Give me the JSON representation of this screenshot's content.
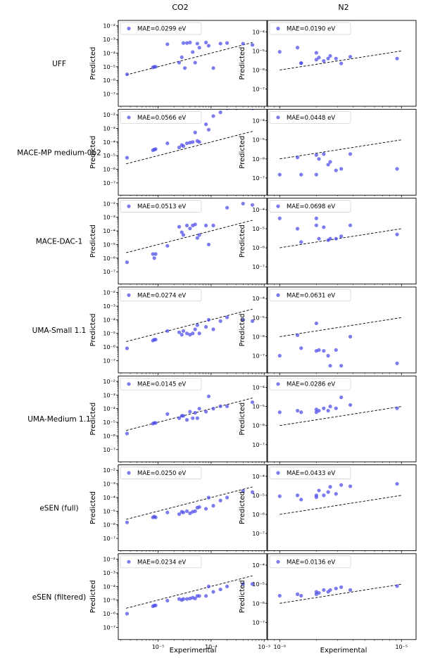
{
  "figure": {
    "columns": [
      "CO2",
      "N2"
    ],
    "rows": [
      "UFF",
      "MACE-MP medium-0b2",
      "MACE-DAC-1",
      "UMA-Small 1.1",
      "UMA-Medium 1.1",
      "eSEN (full)",
      "eSEN (filtered)"
    ],
    "ylabel": "Predicted",
    "xlabel": "Experimental",
    "point_color": "#4a4ae8",
    "reference_line": "y = x (dashed)"
  },
  "axes": {
    "CO2": {
      "x_ticks": [
        "10⁻⁵",
        "10⁻⁴",
        "10⁻³"
      ],
      "y_ticks": [
        "10⁻²",
        "10⁻³",
        "10⁻⁴",
        "10⁻⁵",
        "10⁻⁶",
        "10⁻⁷"
      ],
      "x_log_range": [
        -5.75,
        -2.95
      ],
      "y_log_range": [
        -7.9,
        -1.6
      ]
    },
    "N2": {
      "x_ticks": [
        "10⁻⁶",
        "10⁻⁵"
      ],
      "y_ticks": [
        "10⁻⁴",
        "10⁻⁵",
        "10⁻⁶",
        "10⁻⁷"
      ],
      "x_log_range": [
        -6.1,
        -4.88
      ],
      "y_log_range": [
        -7.9,
        -3.4
      ]
    }
  },
  "chart_data": [
    {
      "type": "scatter",
      "row": "UFF",
      "column": "CO2",
      "legend": "MAE=0.0299 eV",
      "xscale": "log",
      "yscale": "log",
      "x": [
        2.6e-06,
        8e-06,
        8.5e-06,
        9e-06,
        1.5e-05,
        2.5e-05,
        2.8e-05,
        3e-05,
        3.2e-05,
        3.5e-05,
        4e-05,
        4.5e-05,
        5e-05,
        5.5e-05,
        6e-05,
        8e-05,
        9e-05,
        0.00011,
        0.00015,
        0.0002,
        0.0004,
        0.0006
      ],
      "y": [
        2.8e-06,
        9e-06,
        1e-05,
        1e-05,
        0.00045,
        2e-05,
        5e-05,
        0.00055,
        8e-06,
        0.00055,
        0.0006,
        0.00012,
        2e-05,
        0.0005,
        0.00025,
        0.0006,
        0.00035,
        8e-06,
        0.0005,
        0.00055,
        0.0005,
        0.0004
      ]
    },
    {
      "type": "scatter",
      "row": "UFF",
      "column": "N2",
      "legend": "MAE=0.0190 eV",
      "xscale": "log",
      "yscale": "log",
      "x": [
        1e-06,
        1.4e-06,
        1.5e-06,
        1.5e-06,
        2e-06,
        2e-06,
        2.1e-06,
        2.3e-06,
        2.5e-06,
        2.6e-06,
        2.9e-06,
        3.2e-06,
        3.8e-06,
        9.2e-06
      ],
      "y": [
        9e-06,
        1.5e-05,
        2.3e-06,
        2.3e-06,
        3.5e-06,
        8e-06,
        4.5e-06,
        3e-06,
        4e-06,
        5.5e-06,
        4e-06,
        2.2e-06,
        5e-06,
        4e-06
      ]
    },
    {
      "type": "scatter",
      "row": "MACE-MP medium-0b2",
      "column": "CO2",
      "legend": "MAE=0.0566 eV",
      "xscale": "log",
      "yscale": "log",
      "x": [
        2.6e-06,
        8e-06,
        8.5e-06,
        9e-06,
        1.5e-05,
        2.5e-05,
        2.8e-05,
        3e-05,
        3.5e-05,
        4e-05,
        4.5e-05,
        5e-05,
        5.5e-05,
        6e-05,
        8e-05,
        9e-05,
        0.00011,
        0.00015,
        0.0002,
        0.0003,
        0.0006
      ],
      "y": [
        7e-06,
        2.5e-05,
        2.8e-05,
        3e-05,
        8e-05,
        4e-05,
        6e-05,
        5e-05,
        8e-05,
        9e-05,
        0.0001,
        0.0005,
        0.00012,
        0.0001,
        0.002,
        0.0008,
        0.008,
        0.015,
        0.03,
        0.03,
        0.03
      ]
    },
    {
      "type": "scatter",
      "row": "MACE-MP medium-0b2",
      "column": "N2",
      "legend": "MAE=0.0448 eV",
      "xscale": "log",
      "yscale": "log",
      "x": [
        1e-06,
        1.4e-06,
        1.5e-06,
        2e-06,
        2e-06,
        2.1e-06,
        2.3e-06,
        2.5e-06,
        2.6e-06,
        2.9e-06,
        3.2e-06,
        3.8e-06,
        9.2e-06
      ],
      "y": [
        1.5e-07,
        1.2e-06,
        1.5e-07,
        1.6e-06,
        1.5e-07,
        1e-06,
        1.8e-06,
        5e-07,
        7e-07,
        2.5e-07,
        3e-07,
        1.8e-06,
        3e-07
      ]
    },
    {
      "type": "scatter",
      "row": "MACE-DAC-1",
      "column": "CO2",
      "legend": "MAE=0.0513 eV",
      "xscale": "log",
      "yscale": "log",
      "x": [
        2.6e-06,
        8e-06,
        8.5e-06,
        9e-06,
        1.5e-05,
        2.5e-05,
        2.8e-05,
        3e-05,
        3.5e-05,
        4e-05,
        4.5e-05,
        5e-05,
        5.5e-05,
        6e-05,
        8e-05,
        9e-05,
        0.00011,
        0.0002,
        0.0004,
        0.0006
      ],
      "y": [
        5e-07,
        2e-06,
        1e-06,
        2e-06,
        8e-06,
        0.0002,
        8e-05,
        5e-05,
        0.00025,
        0.00015,
        0.00025,
        0.0003,
        3e-05,
        5e-05,
        0.00025,
        1e-05,
        0.00025,
        0.005,
        0.01,
        0.008
      ]
    },
    {
      "type": "scatter",
      "row": "MACE-DAC-1",
      "column": "N2",
      "legend": "MAE=0.0698 eV",
      "xscale": "log",
      "yscale": "log",
      "x": [
        1e-06,
        1.4e-06,
        1.5e-06,
        2e-06,
        2e-06,
        2.1e-06,
        2.3e-06,
        2.5e-06,
        2.6e-06,
        2.9e-06,
        3.2e-06,
        3.8e-06,
        9.2e-06
      ],
      "y": [
        3.5e-05,
        1e-05,
        2e-06,
        3.5e-05,
        1.5e-05,
        3e-06,
        1.2e-05,
        2.5e-06,
        3e-06,
        3e-06,
        4e-06,
        1.5e-05,
        5e-06
      ]
    },
    {
      "type": "scatter",
      "row": "UMA-Small 1.1",
      "column": "CO2",
      "legend": "MAE=0.0274 eV",
      "xscale": "log",
      "yscale": "log",
      "x": [
        2.6e-06,
        8e-06,
        8.5e-06,
        9e-06,
        1.5e-05,
        2.5e-05,
        2.8e-05,
        3e-05,
        3.5e-05,
        4e-05,
        4.5e-05,
        5e-05,
        5.5e-05,
        6e-05,
        8e-05,
        9e-05,
        0.00011,
        0.00015,
        0.0002,
        0.0004,
        0.0006
      ],
      "y": [
        8e-07,
        3e-06,
        3.5e-06,
        3.5e-06,
        1.5e-05,
        1.2e-05,
        8e-06,
        1.5e-05,
        1e-05,
        8e-06,
        1e-05,
        2e-05,
        4e-05,
        1e-05,
        3e-05,
        0.0001,
        2e-05,
        8e-05,
        0.00015,
        0.0001,
        8e-05
      ]
    },
    {
      "type": "scatter",
      "row": "UMA-Small 1.1",
      "column": "N2",
      "legend": "MAE=0.0631 eV",
      "xscale": "log",
      "yscale": "log",
      "x": [
        1e-06,
        1.4e-06,
        1.5e-06,
        2e-06,
        2e-06,
        2.1e-06,
        2.3e-06,
        2.5e-06,
        2.6e-06,
        2.9e-06,
        3.2e-06,
        3.8e-06,
        9.2e-06
      ],
      "y": [
        1e-07,
        1.2e-06,
        2.5e-07,
        5e-06,
        1.8e-07,
        2e-07,
        1.8e-07,
        1e-07,
        3e-08,
        2e-07,
        3e-08,
        1e-06,
        4e-08
      ]
    },
    {
      "type": "scatter",
      "row": "UMA-Medium 1.1",
      "column": "CO2",
      "legend": "MAE=0.0145 eV",
      "xscale": "log",
      "yscale": "log",
      "x": [
        2.6e-06,
        8e-06,
        8.5e-06,
        9e-06,
        1.5e-05,
        2.5e-05,
        2.8e-05,
        3e-05,
        3.5e-05,
        4e-05,
        4.5e-05,
        5e-05,
        5.5e-05,
        6e-05,
        8e-05,
        9e-05,
        0.00011,
        0.00015,
        0.0002,
        0.0006
      ],
      "y": [
        1.5e-06,
        8e-06,
        9e-06,
        9e-06,
        4e-05,
        2e-05,
        3e-05,
        3e-05,
        1.5e-05,
        6e-05,
        2e-05,
        5e-05,
        2e-05,
        0.0001,
        6e-05,
        0.0008,
        0.0001,
        0.00015,
        0.00015,
        0.0003
      ]
    },
    {
      "type": "scatter",
      "row": "UMA-Medium 1.1",
      "column": "N2",
      "legend": "MAE=0.0286 eV",
      "xscale": "log",
      "yscale": "log",
      "x": [
        1e-06,
        1.4e-06,
        1.5e-06,
        2e-06,
        2e-06,
        2.1e-06,
        2.3e-06,
        2.5e-06,
        2.6e-06,
        2.9e-06,
        3.2e-06,
        3.8e-06,
        9.2e-06
      ],
      "y": [
        5e-06,
        6e-06,
        5e-06,
        7e-06,
        5e-06,
        6e-06,
        8e-06,
        6e-06,
        1e-05,
        8e-06,
        3e-05,
        1.2e-05,
        8e-06
      ]
    },
    {
      "type": "scatter",
      "row": "eSEN (full)",
      "column": "CO2",
      "legend": "MAE=0.0250 eV",
      "xscale": "log",
      "yscale": "log",
      "x": [
        2.6e-06,
        8e-06,
        8.5e-06,
        9e-06,
        1.5e-05,
        2.5e-05,
        2.8e-05,
        3e-05,
        3.5e-05,
        4e-05,
        4.5e-05,
        5e-05,
        5.5e-05,
        6e-05,
        8e-05,
        9e-05,
        0.00011,
        0.00015,
        0.0002,
        0.0004,
        0.0006
      ],
      "y": [
        1.5e-06,
        3.5e-06,
        4e-06,
        3.5e-06,
        8e-06,
        6e-06,
        9e-06,
        8e-06,
        1e-05,
        7e-06,
        9e-06,
        1e-05,
        1.8e-05,
        2e-05,
        1.5e-05,
        0.0001,
        2.5e-05,
        6e-05,
        0.0001,
        0.0003,
        0.00025
      ]
    },
    {
      "type": "scatter",
      "row": "eSEN (full)",
      "column": "N2",
      "legend": "MAE=0.0433 eV",
      "xscale": "log",
      "yscale": "log",
      "x": [
        1e-06,
        1.4e-06,
        1.5e-06,
        2e-06,
        2e-06,
        2.1e-06,
        2.3e-06,
        2.5e-06,
        2.6e-06,
        2.9e-06,
        3.2e-06,
        3.8e-06,
        9.2e-06
      ],
      "y": [
        9e-06,
        1e-05,
        6e-06,
        8e-06,
        1e-05,
        1.8e-05,
        1e-05,
        1.5e-05,
        2.8e-05,
        1.2e-05,
        3.5e-05,
        3e-05,
        4e-05
      ]
    },
    {
      "type": "scatter",
      "row": "eSEN (filtered)",
      "column": "CO2",
      "legend": "MAE=0.0234 eV",
      "xscale": "log",
      "yscale": "log",
      "x": [
        2.6e-06,
        8e-06,
        8.5e-06,
        9e-06,
        1.5e-05,
        2.5e-05,
        2.8e-05,
        3e-05,
        3.5e-05,
        4e-05,
        4.5e-05,
        5e-05,
        5.5e-05,
        6e-05,
        8e-05,
        9e-05,
        0.00011,
        0.00015,
        0.0002,
        0.0004,
        0.0006
      ],
      "y": [
        1e-06,
        3.5e-06,
        4e-06,
        4e-06,
        9e-06,
        1.2e-05,
        1e-05,
        1.2e-05,
        1.2e-05,
        1.3e-05,
        1.5e-05,
        1.3e-05,
        2e-05,
        2e-05,
        2e-05,
        0.0001,
        4e-05,
        6e-05,
        0.0001,
        0.00015,
        0.00015
      ]
    },
    {
      "type": "scatter",
      "row": "eSEN (filtered)",
      "column": "N2",
      "legend": "MAE=0.0136 eV",
      "xscale": "log",
      "yscale": "log",
      "x": [
        1e-06,
        1.4e-06,
        1.5e-06,
        2e-06,
        2e-06,
        2.1e-06,
        2.3e-06,
        2.5e-06,
        2.6e-06,
        2.9e-06,
        3.2e-06,
        3.8e-06,
        9.2e-06
      ],
      "y": [
        2.5e-06,
        3e-06,
        2.5e-06,
        3e-06,
        4e-06,
        3.5e-06,
        5e-06,
        4e-06,
        5e-06,
        6e-06,
        7e-06,
        5e-06,
        8e-06
      ]
    }
  ]
}
